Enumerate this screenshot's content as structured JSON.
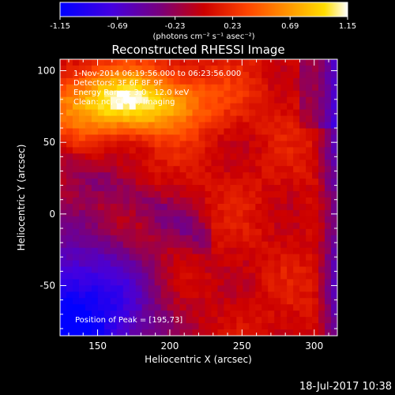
{
  "chart_data": {
    "type": "heatmap",
    "title": "Reconstructed RHESSI Image",
    "xlabel": "Heliocentric X (arcsec)",
    "ylabel": "Heliocentric Y (arcsec)",
    "xlim": [
      124,
      316
    ],
    "ylim": [
      -85,
      108
    ],
    "xticks": [
      150,
      200,
      250,
      300
    ],
    "yticks": [
      -50,
      0,
      50,
      100
    ],
    "colorbar": {
      "range": [
        -1.15,
        1.15
      ],
      "ticks": [
        "-1.15",
        "-0.69",
        "-0.23",
        "0.23",
        "0.69",
        "1.15"
      ],
      "unit_label": "(photons cm⁻² s⁻¹ asec⁻²)",
      "colormap": [
        "#0000ff",
        "#6a00c8",
        "#cc0000",
        "#ff6a00",
        "#ffd200",
        "#ffffff"
      ]
    },
    "annotations": {
      "time_range": "1-Nov-2014 06:19:56.000 to 06:23:56.000",
      "detectors": "Detectors: 3F 6F 8F 9F",
      "energy": "Energy Range: 3.0 - 12.0 keV",
      "clean": "Clean: nc, Clean, Imaging",
      "peak": "Position of Peak = [195,73]"
    },
    "peak_position": [
      195,
      73
    ],
    "footer_date": "18-Jul-2017 10:38"
  }
}
